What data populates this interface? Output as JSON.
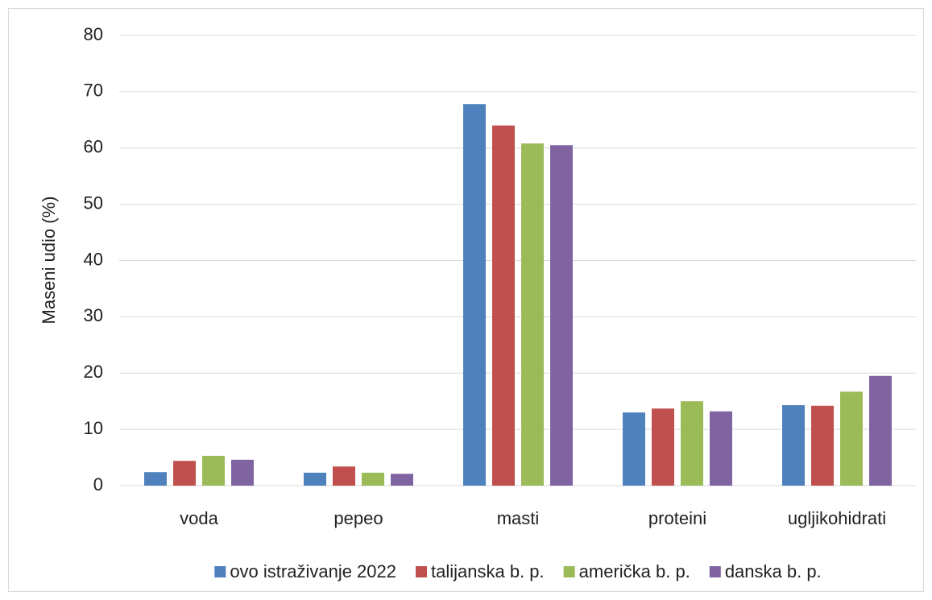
{
  "chart_data": {
    "type": "bar",
    "ylabel": "Maseni udio (%)",
    "categories": [
      "voda",
      "pepeo",
      "masti",
      "proteini",
      "ugljikohidrati"
    ],
    "series": [
      {
        "name": "ovo istraživanje 2022",
        "color": "#4f81bd",
        "values": [
          2.4,
          2.3,
          67.8,
          13.0,
          14.3
        ]
      },
      {
        "name": "talijanska b. p.",
        "color": "#c0504d",
        "values": [
          4.4,
          3.4,
          64.0,
          13.7,
          14.2
        ]
      },
      {
        "name": "američka b. p.",
        "color": "#9bbb59",
        "values": [
          5.3,
          2.3,
          60.8,
          15.0,
          16.7
        ]
      },
      {
        "name": "danska b. p.",
        "color": "#8064a2",
        "values": [
          4.6,
          2.1,
          60.5,
          13.2,
          19.5
        ]
      }
    ],
    "ylim": [
      0,
      80
    ],
    "yticks": [
      0,
      10,
      20,
      30,
      40,
      50,
      60,
      70,
      80
    ],
    "grid": true,
    "legend": "bottom"
  }
}
